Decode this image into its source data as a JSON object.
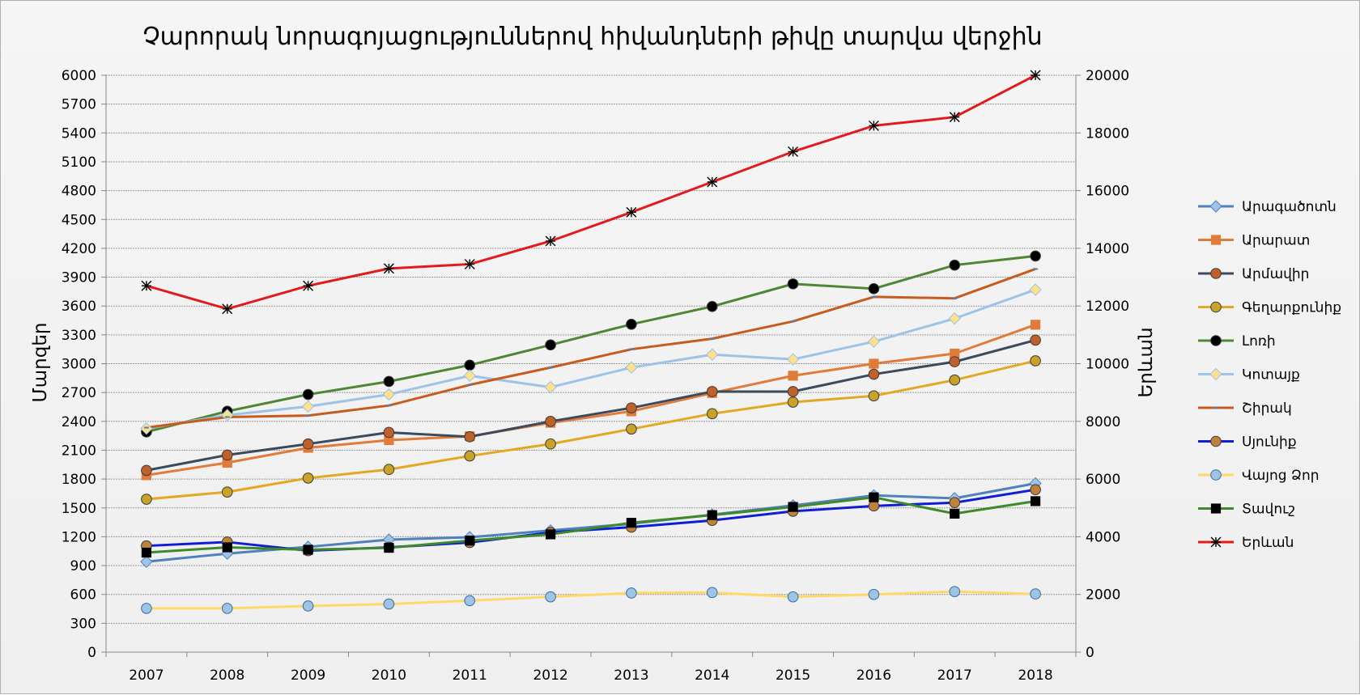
{
  "chart_data": {
    "type": "line",
    "title": "Չարորակ նորագոյացություններով հիվանդների թիվը տարվա վերջին",
    "ylabel": "Մարզեր",
    "y2label": "Երևան",
    "ylim": [
      0,
      6000
    ],
    "y_ticks": [
      0,
      300,
      600,
      900,
      1200,
      1500,
      1800,
      2100,
      2400,
      2700,
      3000,
      3300,
      3600,
      3900,
      4200,
      4500,
      4800,
      5100,
      5400,
      5700,
      6000
    ],
    "y2lim": [
      0,
      20000
    ],
    "y2_ticks": [
      0,
      2000,
      4000,
      6000,
      8000,
      10000,
      12000,
      14000,
      16000,
      18000,
      20000
    ],
    "grid": true,
    "legend_position": "right",
    "categories": [
      "2007",
      "2008",
      "2009",
      "2010",
      "2011",
      "2012",
      "2013",
      "2014",
      "2015",
      "2016",
      "2017",
      "2018"
    ],
    "series": [
      {
        "name": "Արագածոտն",
        "axis": "left",
        "color": "#4f81bd",
        "marker": "diamond",
        "marker_fill": "#9dc3e6",
        "values": [
          940,
          1025,
          1095,
          1170,
          1195,
          1265,
          1335,
          1430,
          1525,
          1630,
          1600,
          1755
        ]
      },
      {
        "name": "Արարատ",
        "axis": "left",
        "color": "#e07b39",
        "marker": "square",
        "marker_fill": "#e07b39",
        "values": [
          1840,
          1970,
          2125,
          2205,
          2245,
          2385,
          2505,
          2695,
          2875,
          3000,
          3105,
          3405
        ]
      },
      {
        "name": "Արմավիր",
        "axis": "left",
        "color": "#3b4a5c",
        "marker": "circle",
        "marker_fill": "#c0612b",
        "values": [
          1890,
          2050,
          2165,
          2285,
          2240,
          2400,
          2540,
          2710,
          2710,
          2890,
          3020,
          3245
        ]
      },
      {
        "name": "Գեղարքունիք",
        "axis": "left",
        "color": "#e3a823",
        "marker": "circle",
        "marker_fill": "#c9a227",
        "values": [
          1590,
          1665,
          1810,
          1900,
          2040,
          2165,
          2320,
          2480,
          2600,
          2665,
          2830,
          3030
        ]
      },
      {
        "name": "Լոռի",
        "axis": "left",
        "color": "#4e8733",
        "marker": "circle",
        "marker_fill": "#000000",
        "values": [
          2290,
          2505,
          2680,
          2815,
          2985,
          3195,
          3410,
          3595,
          3830,
          3780,
          4025,
          4120
        ]
      },
      {
        "name": "Կոտայք",
        "axis": "left",
        "color": "#9dc3e6",
        "marker": "diamond",
        "marker_fill": "#ffe08a",
        "values": [
          2325,
          2465,
          2555,
          2680,
          2875,
          2755,
          2960,
          3095,
          3045,
          3230,
          3470,
          3770
        ]
      },
      {
        "name": "Շիրակ",
        "axis": "left",
        "color": "#c75b1e",
        "marker": "dash",
        "marker_fill": "#4f81bd",
        "values": [
          2335,
          2445,
          2460,
          2565,
          2780,
          2960,
          3150,
          3260,
          3440,
          3695,
          3680,
          3985
        ]
      },
      {
        "name": "Սյունիք",
        "axis": "left",
        "color": "#0f1ed4",
        "marker": "circle",
        "marker_fill": "#c0813a",
        "values": [
          1105,
          1145,
          1055,
          1090,
          1140,
          1245,
          1300,
          1370,
          1465,
          1520,
          1555,
          1690
        ]
      },
      {
        "name": "Վայոց Ձոր",
        "axis": "left",
        "color": "#ffd966",
        "marker": "circle",
        "marker_fill": "#9dc3e6",
        "values": [
          455,
          455,
          480,
          500,
          535,
          575,
          615,
          620,
          575,
          600,
          630,
          605
        ]
      },
      {
        "name": "Տավուշ",
        "axis": "left",
        "color": "#3e8a2a",
        "marker": "square",
        "marker_fill": "#000000",
        "values": [
          1035,
          1090,
          1065,
          1085,
          1160,
          1225,
          1345,
          1425,
          1510,
          1610,
          1440,
          1570
        ]
      },
      {
        "name": "Երևան",
        "axis": "right",
        "color": "#e31a1c",
        "marker": "star",
        "marker_fill": "#000000",
        "values": [
          12700,
          11900,
          12700,
          13300,
          13450,
          14250,
          15250,
          16300,
          17350,
          18250,
          18550,
          20000
        ]
      }
    ]
  }
}
